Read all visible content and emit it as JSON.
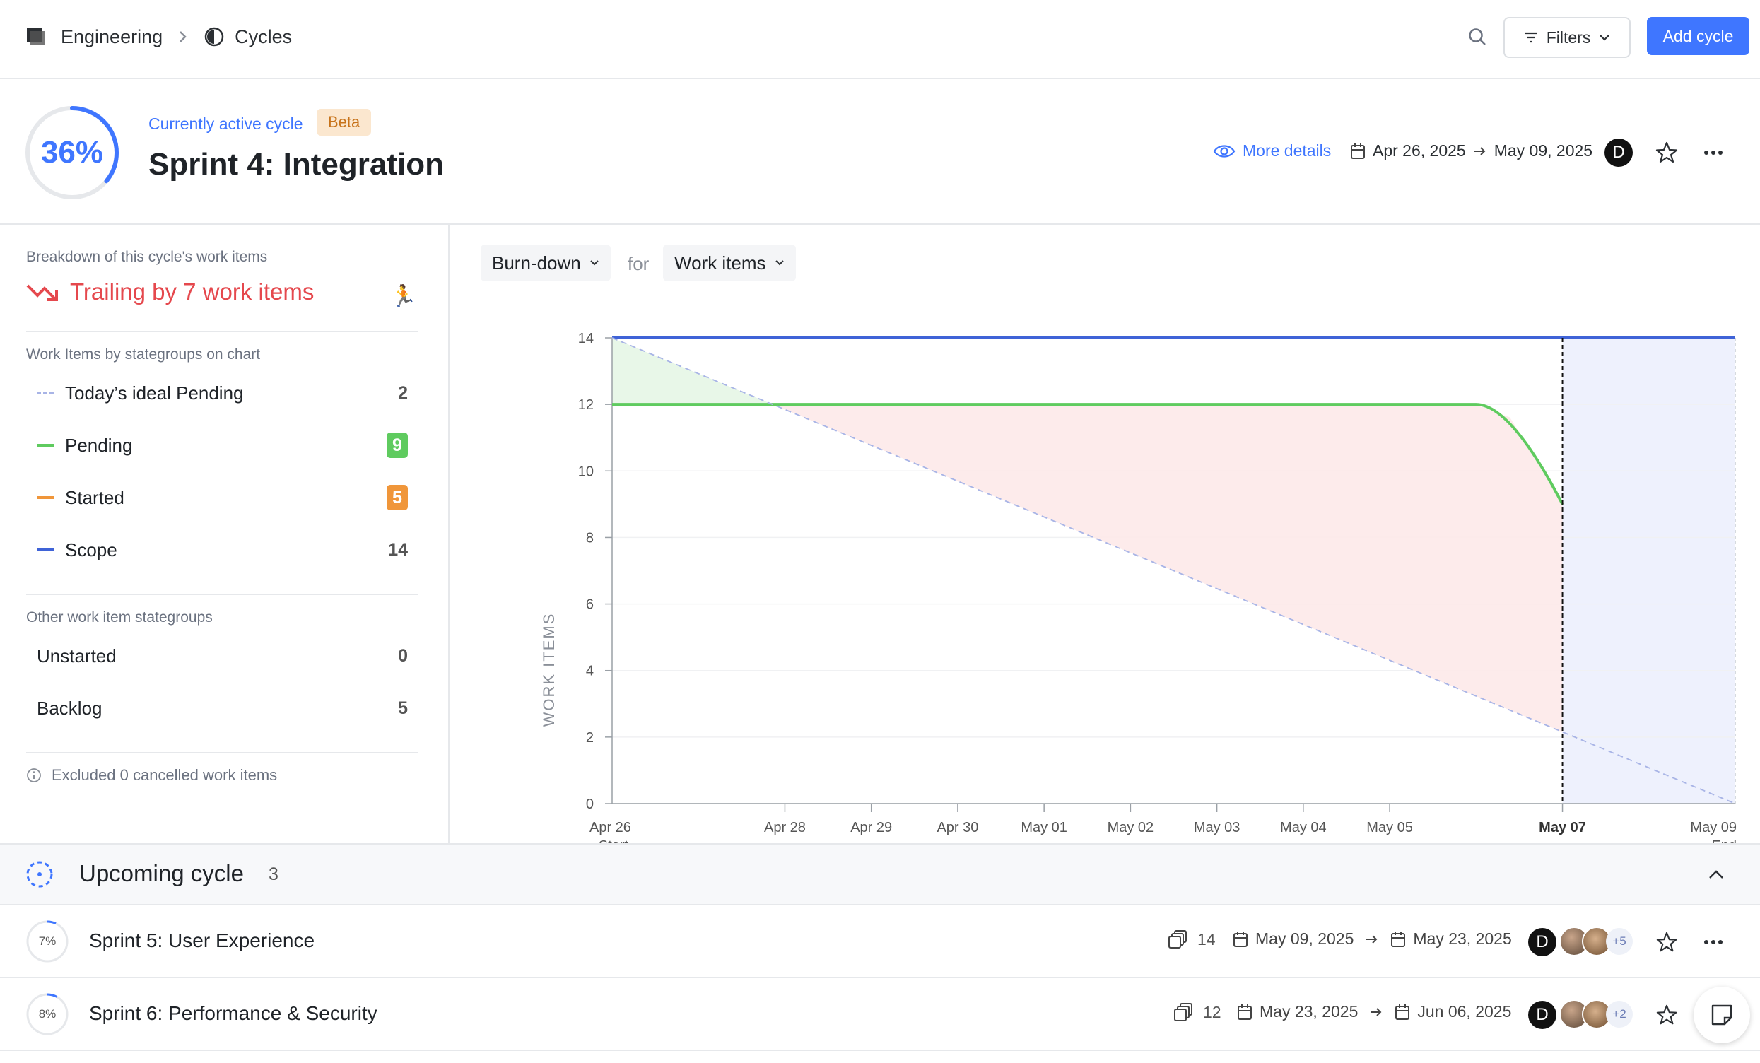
{
  "breadcrumb": {
    "workspace": "Engineering",
    "section": "Cycles"
  },
  "toolbar": {
    "filters_label": "Filters",
    "add_cycle_label": "Add cycle"
  },
  "active_cycle": {
    "progress_text": "36%",
    "progress_fraction": 0.36,
    "label": "Currently active cycle",
    "badge": "Beta",
    "title": "Sprint 4: Integration",
    "more_details": "More details",
    "start_date": "Apr 26, 2025",
    "end_date": "May 09, 2025",
    "owner_initial": "D"
  },
  "breakdown": {
    "heading": "Breakdown of this cycle's work items",
    "status": "Trailing by 7 work items",
    "chart_groups_heading": "Work Items by stategroups on chart",
    "chart_groups": [
      {
        "label": "Today’s ideal Pending",
        "value": "2",
        "color": "#a8b4e6"
      },
      {
        "label": "Pending",
        "value": "9",
        "color": "#5fcb5f"
      },
      {
        "label": "Started",
        "value": "5",
        "color": "#f0963a"
      },
      {
        "label": "Scope",
        "value": "14",
        "color": "#3f63d7"
      }
    ],
    "other_groups_heading": "Other work item stategroups",
    "other_groups": [
      {
        "label": "Unstarted",
        "value": "0"
      },
      {
        "label": "Backlog",
        "value": "5"
      }
    ],
    "excluded_note": "Excluded 0 cancelled work items"
  },
  "chart_controls": {
    "chart_type": "Burn-down",
    "for_label": "for",
    "metric": "Work items"
  },
  "chart_data": {
    "type": "line",
    "ylabel": "WORK ITEMS",
    "ylim": [
      0,
      14
    ],
    "yticks": [
      0,
      2,
      4,
      6,
      8,
      10,
      12,
      14
    ],
    "x_days": [
      0,
      2,
      3,
      4,
      5,
      6,
      7,
      8,
      9,
      11,
      13
    ],
    "x_labels": [
      "Apr 26",
      "Apr 28",
      "Apr 29",
      "Apr 30",
      "May 01",
      "May 02",
      "May 03",
      "May 04",
      "May 05",
      "May 07",
      "May 09"
    ],
    "start_label": "Start",
    "end_label": "End",
    "today_day": 11,
    "series": [
      {
        "name": "Scope",
        "color": "#3f63d7",
        "points": [
          [
            0,
            14
          ],
          [
            13,
            14
          ]
        ]
      },
      {
        "name": "Pending",
        "color": "#5fcb5f",
        "points": [
          [
            0,
            12
          ],
          [
            10,
            12
          ],
          [
            10.4,
            11.6
          ],
          [
            11,
            9
          ]
        ]
      },
      {
        "name": "Today’s ideal Pending",
        "color": "#a8b4e6",
        "dashed": true,
        "points": [
          [
            0,
            14
          ],
          [
            13,
            0
          ]
        ]
      }
    ]
  },
  "upcoming": {
    "title": "Upcoming cycle",
    "count": "3",
    "cycles": [
      {
        "progress_text": "7%",
        "progress_fraction": 0.07,
        "title": "Sprint 5: User Experience",
        "issues": "14",
        "start": "May 09, 2025",
        "end": "May 23, 2025",
        "owner_initial": "D",
        "more_members": "+5"
      },
      {
        "progress_text": "8%",
        "progress_fraction": 0.08,
        "title": "Sprint 6: Performance & Security",
        "issues": "12",
        "start": "May 23, 2025",
        "end": "Jun 06, 2025",
        "owner_initial": "D",
        "more_members": "+2"
      }
    ]
  },
  "icons": [
    "workspace-logo-icon",
    "chevron-right-icon",
    "cycle-icon",
    "search-icon",
    "filter-icon",
    "eye-icon",
    "calendar-icon",
    "star-icon",
    "more-icon",
    "trend-down-icon",
    "runner-icon",
    "info-icon",
    "upcoming-cycle-icon",
    "chevron-up-icon",
    "issues-icon",
    "arrow-right-icon",
    "sticky-note-icon"
  ]
}
